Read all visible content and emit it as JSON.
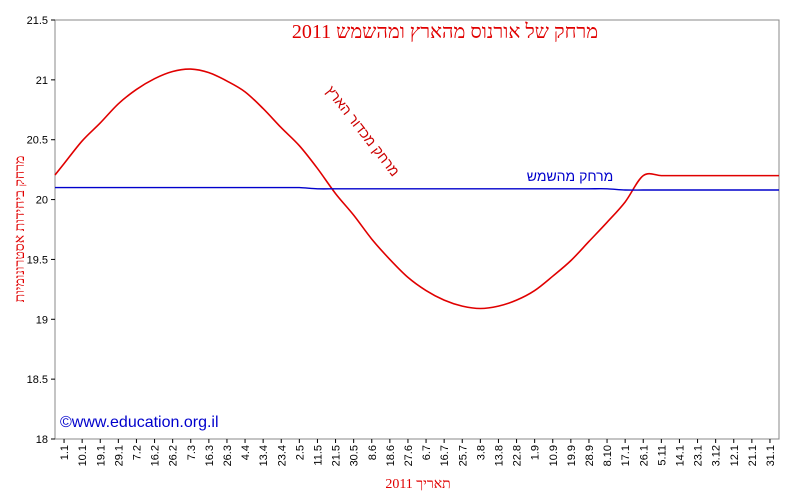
{
  "chart_data": {
    "type": "line",
    "title": "מרחק של אורנוס מהארץ ומהשמש 2011",
    "xlabel": "תאריך 2011",
    "ylabel": "מרחק ביחידות אסטרונומיות",
    "ylim": [
      18,
      21.5
    ],
    "yticks": [
      "18",
      "18.5",
      "19",
      "19.5",
      "20",
      "20.5",
      "21",
      "21.5"
    ],
    "x_tick_labels": [
      "1.1",
      "10.1",
      "19.1",
      "29.1",
      "7.2",
      "16.2",
      "26.2",
      "7.3",
      "16.3",
      "26.3",
      "4.4",
      "13.4",
      "23.4",
      "2.5",
      "11.5",
      "21.5",
      "30.5",
      "8.6",
      "18.6",
      "27.6",
      "6.7",
      "16.7",
      "25.7",
      "3.8",
      "13.8",
      "22.8",
      "1.9",
      "10.9",
      "19.9",
      "28.9",
      "8.10",
      "17.1",
      "26.1",
      "5.11",
      "14.1",
      "23.1",
      "3.12",
      "12.1",
      "21.1",
      "31.1"
    ],
    "series": [
      {
        "name": "מרחק מכדור הארץ",
        "color": "#e00000",
        "values": [
          20.3,
          20.49,
          20.64,
          20.8,
          20.92,
          21.01,
          21.07,
          21.09,
          21.06,
          20.99,
          20.9,
          20.76,
          20.6,
          20.45,
          20.26,
          20.05,
          19.87,
          19.67,
          19.5,
          19.35,
          19.24,
          19.16,
          19.11,
          19.09,
          19.11,
          19.16,
          19.24,
          19.36,
          19.49,
          19.65,
          19.81,
          19.98,
          20.2,
          20.2,
          20.2,
          20.2,
          20.2,
          20.2,
          20.2,
          20.2
        ]
      },
      {
        "name": "מרחק מהשמש",
        "color": "#0000cc",
        "values": [
          20.1,
          20.1,
          20.1,
          20.1,
          20.1,
          20.1,
          20.1,
          20.1,
          20.1,
          20.1,
          20.1,
          20.1,
          20.1,
          20.1,
          20.09,
          20.09,
          20.09,
          20.09,
          20.09,
          20.09,
          20.09,
          20.09,
          20.09,
          20.09,
          20.09,
          20.09,
          20.09,
          20.09,
          20.09,
          20.09,
          20.09,
          20.08,
          20.08,
          20.08,
          20.08,
          20.08,
          20.08,
          20.08,
          20.08,
          20.08
        ]
      }
    ],
    "grid": false,
    "annotations": {
      "earth_label": "מרחק מכדור הארץ",
      "sun_label": "מרחק מהשמש",
      "copyright": "©www.education.org.il"
    }
  }
}
